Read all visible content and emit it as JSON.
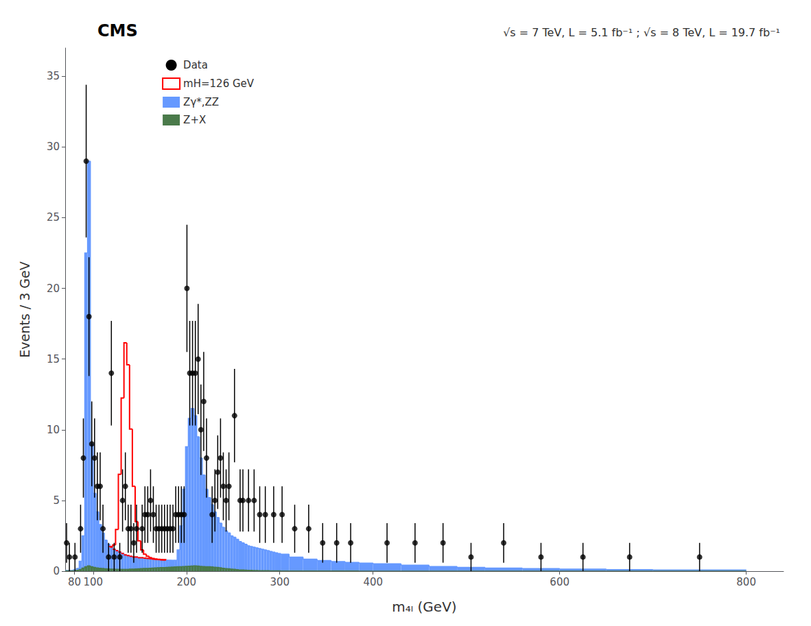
{
  "chart_data": {
    "type": "histogram",
    "title": "CMS",
    "subtitle": "√s = 7 TeV, L = 5.1 fb⁻¹ ; √s = 8 TeV, L = 19.7 fb⁻¹",
    "xlabel": "m₄ₗ (GeV)",
    "ylabel": "Events / 3 GeV",
    "xlim": [
      70,
      840
    ],
    "ylim": [
      0,
      37
    ],
    "xticks": [
      80,
      100,
      200,
      300,
      400,
      600,
      800
    ],
    "yticks": [
      0,
      5,
      10,
      15,
      20,
      25,
      30,
      35
    ],
    "grid": false,
    "legend": "upper left",
    "bins": [
      70,
      73,
      76,
      79,
      82,
      85,
      88,
      91,
      94,
      97,
      100,
      103,
      106,
      109,
      112,
      115,
      118,
      121,
      124,
      127,
      130,
      133,
      136,
      139,
      142,
      145,
      148,
      151,
      154,
      157,
      160,
      163,
      166,
      169,
      172,
      175,
      178,
      181,
      184,
      187,
      190,
      193,
      196,
      199,
      202,
      205,
      208,
      211,
      214,
      217,
      220,
      223,
      226,
      229,
      232,
      235,
      238,
      241,
      244,
      247,
      250,
      253,
      256,
      259,
      262,
      265,
      268,
      271,
      274,
      277,
      280,
      283,
      286,
      289,
      292,
      295,
      298,
      301,
      310,
      325,
      340,
      355,
      370,
      385,
      400,
      430,
      460,
      490,
      520,
      560,
      600,
      650,
      700,
      800
    ],
    "series": [
      {
        "name": "Data",
        "type": "scatter",
        "marker": "circle",
        "color": "black",
        "x": [
          71.5,
          74.5,
          80.5,
          86.5,
          89.5,
          92.5,
          95.5,
          98.5,
          101.5,
          104.5,
          107.5,
          110.5,
          116.5,
          119.5,
          122.5,
          128.5,
          131.5,
          134.5,
          137.5,
          140.5,
          143.5,
          146.5,
          152.5,
          155.5,
          158.5,
          161.5,
          164.5,
          167.5,
          170.5,
          173.5,
          176.5,
          179.5,
          182.5,
          185.5,
          188.5,
          191.5,
          194.5,
          197.5,
          200.5,
          203.5,
          206.5,
          209.5,
          212.5,
          215.5,
          218.5,
          221.5,
          227.5,
          230.5,
          233.5,
          236.5,
          239.5,
          242.5,
          245.5,
          251.5,
          257.5,
          260.5,
          266.5,
          272.5,
          278.5,
          284.5,
          293.5,
          302.5,
          316,
          331,
          346,
          361,
          376,
          415,
          445,
          475,
          505,
          540,
          580,
          625,
          675,
          750
        ],
        "values": [
          2,
          1,
          1,
          3,
          8,
          29,
          18,
          9,
          8,
          6,
          6,
          3,
          1,
          14,
          1,
          1,
          5,
          6,
          3,
          3,
          2,
          3,
          3,
          4,
          4,
          5,
          4,
          3,
          3,
          3,
          3,
          3,
          3,
          3,
          4,
          4,
          4,
          4,
          20,
          14,
          14,
          14,
          15,
          10,
          12,
          8,
          4,
          5,
          7,
          8,
          6,
          5,
          6,
          11,
          5,
          5,
          5,
          5,
          4,
          4,
          4,
          4,
          3,
          3,
          2,
          2,
          2,
          2,
          2,
          2,
          1,
          2,
          1,
          1,
          1,
          1
        ],
        "errors": [
          1.4,
          1.0,
          1.0,
          1.7,
          2.8,
          5.4,
          4.2,
          3.0,
          2.8,
          2.4,
          2.4,
          1.7,
          1.0,
          3.7,
          1.0,
          1.0,
          2.2,
          2.4,
          1.7,
          1.7,
          1.4,
          1.7,
          1.7,
          2.0,
          2.0,
          2.2,
          2.0,
          1.7,
          1.7,
          1.7,
          1.7,
          1.7,
          1.7,
          1.7,
          2.0,
          2.0,
          2.0,
          2.0,
          4.5,
          3.7,
          3.7,
          3.7,
          3.9,
          3.2,
          3.5,
          2.8,
          2.0,
          2.2,
          2.6,
          2.8,
          2.4,
          2.2,
          2.4,
          3.3,
          2.2,
          2.2,
          2.2,
          2.2,
          2.0,
          2.0,
          2.0,
          2.0,
          1.7,
          1.7,
          1.4,
          1.4,
          1.4,
          1.4,
          1.4,
          1.4,
          1.0,
          1.4,
          1.0,
          1.0,
          1.0,
          1.0
        ]
      },
      {
        "name": "mH=126 GeV",
        "type": "histogram",
        "stacked": true,
        "color": "#ff0000",
        "values": [
          0,
          0,
          0,
          0,
          0,
          0,
          0,
          0,
          0,
          0,
          0,
          0,
          0,
          0,
          0,
          0,
          0.05,
          0.3,
          1.5,
          5.5,
          11.0,
          15.0,
          13.5,
          9.0,
          5.0,
          2.5,
          1.2,
          0.55,
          0.28,
          0.15,
          0.08,
          0.05,
          0.03,
          0.02,
          0.01,
          0.005,
          0,
          0,
          0,
          0,
          0,
          0,
          0,
          0,
          0,
          0,
          0,
          0,
          0,
          0,
          0,
          0,
          0,
          0,
          0,
          0,
          0,
          0,
          0,
          0,
          0,
          0,
          0,
          0,
          0,
          0,
          0,
          0,
          0,
          0,
          0,
          0,
          0,
          0,
          0,
          0,
          0,
          0,
          0,
          0,
          0,
          0,
          0,
          0,
          0,
          0,
          0,
          0,
          0,
          0,
          0,
          0,
          0
        ]
      },
      {
        "name": "Zγ*,ZZ",
        "type": "histogram",
        "color": "#6699ff",
        "values": [
          0.05,
          0.05,
          0.05,
          0.1,
          0.2,
          0.7,
          2.5,
          22.5,
          29.0,
          9.0,
          5.5,
          4.2,
          3.3,
          2.7,
          2.2,
          1.9,
          1.7,
          1.55,
          1.45,
          1.35,
          1.25,
          1.15,
          1.1,
          1.05,
          1.0,
          1.0,
          0.95,
          0.95,
          0.92,
          0.9,
          0.88,
          0.85,
          0.83,
          0.82,
          0.8,
          0.8,
          0.78,
          0.77,
          0.77,
          0.77,
          1.5,
          3.2,
          5.8,
          8.8,
          10.8,
          11.5,
          11.0,
          9.5,
          8.0,
          6.8,
          5.8,
          5.2,
          4.7,
          4.2,
          3.8,
          3.4,
          3.1,
          2.85,
          2.7,
          2.5,
          2.4,
          2.25,
          2.1,
          2.0,
          1.9,
          1.8,
          1.75,
          1.7,
          1.65,
          1.6,
          1.55,
          1.5,
          1.45,
          1.4,
          1.35,
          1.3,
          1.25,
          1.2,
          1.0,
          0.85,
          0.75,
          0.68,
          0.62,
          0.57,
          0.52,
          0.42,
          0.33,
          0.27,
          0.22,
          0.18,
          0.14,
          0.11,
          0.085
        ]
      },
      {
        "name": "Z+X",
        "type": "histogram",
        "color": "#4a7a4a",
        "values": [
          0.02,
          0.02,
          0.02,
          0.03,
          0.06,
          0.12,
          0.22,
          0.32,
          0.38,
          0.32,
          0.27,
          0.23,
          0.21,
          0.19,
          0.17,
          0.16,
          0.15,
          0.14,
          0.13,
          0.13,
          0.13,
          0.13,
          0.13,
          0.14,
          0.15,
          0.16,
          0.17,
          0.18,
          0.19,
          0.2,
          0.21,
          0.22,
          0.23,
          0.24,
          0.25,
          0.26,
          0.27,
          0.28,
          0.29,
          0.3,
          0.31,
          0.32,
          0.33,
          0.34,
          0.35,
          0.36,
          0.37,
          0.36,
          0.34,
          0.33,
          0.32,
          0.31,
          0.3,
          0.28,
          0.27,
          0.24,
          0.21,
          0.18,
          0.17,
          0.15,
          0.13,
          0.11,
          0.09,
          0.08,
          0.07,
          0.06,
          0.055,
          0.05,
          0.045,
          0.04,
          0.038,
          0.035,
          0.032,
          0.028,
          0.025,
          0.022,
          0.02,
          0.018,
          0.015,
          0.012,
          0.01,
          0.008,
          0.007,
          0.006,
          0.005,
          0.004,
          0.003,
          0.002,
          0.002,
          0.001,
          0.001,
          0.001,
          0.0008
        ]
      }
    ]
  }
}
